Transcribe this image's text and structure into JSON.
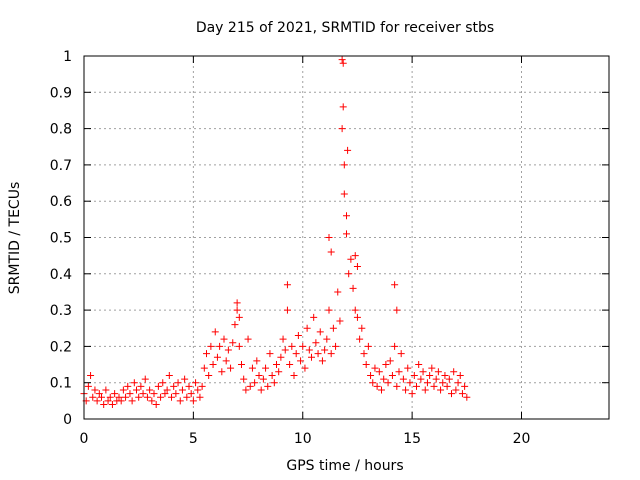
{
  "chart_data": {
    "type": "scatter",
    "title": "Day 215 of 2021, SRMTID for receiver stbs",
    "xlabel": "GPS time / hours",
    "ylabel": "SRMTID / TECUs",
    "xlim": [
      0,
      24
    ],
    "ylim": [
      0,
      1
    ],
    "xticks": [
      0,
      5,
      10,
      15,
      20
    ],
    "xtick_labels": [
      "0",
      "5",
      "10",
      "15",
      "20"
    ],
    "yticks": [
      0,
      0.1,
      0.2,
      0.3,
      0.4,
      0.5,
      0.6,
      0.7,
      0.8,
      0.9,
      1
    ],
    "ytick_labels": [
      "0",
      "0.1",
      "0.2",
      "0.3",
      "0.4",
      "0.5",
      "0.6",
      "0.7",
      "0.8",
      "0.9",
      "1"
    ],
    "grid": true,
    "marker": "+",
    "series": [
      {
        "name": "SRMTID",
        "color": "#ff0000",
        "x": [
          0.0,
          0.1,
          0.2,
          0.3,
          0.4,
          0.5,
          0.6,
          0.7,
          0.8,
          0.9,
          1.0,
          1.1,
          1.2,
          1.3,
          1.4,
          1.5,
          1.6,
          1.7,
          1.8,
          1.9,
          2.0,
          2.1,
          2.2,
          2.3,
          2.4,
          2.5,
          2.6,
          2.7,
          2.8,
          2.9,
          3.0,
          3.1,
          3.2,
          3.3,
          3.4,
          3.5,
          3.6,
          3.7,
          3.8,
          3.9,
          4.0,
          4.1,
          4.2,
          4.3,
          4.4,
          4.5,
          4.6,
          4.7,
          4.8,
          4.9,
          5.0,
          5.1,
          5.2,
          5.3,
          5.4,
          5.5,
          5.6,
          5.7,
          5.8,
          5.9,
          6.0,
          6.1,
          6.2,
          6.3,
          6.4,
          6.5,
          6.6,
          6.7,
          6.8,
          6.9,
          7.0,
          7.1,
          7.2,
          7.3,
          7.4,
          7.5,
          7.6,
          7.7,
          7.8,
          7.9,
          8.0,
          8.1,
          8.2,
          8.3,
          8.4,
          8.5,
          8.6,
          8.7,
          8.8,
          8.9,
          9.0,
          9.1,
          9.2,
          9.3,
          9.4,
          9.5,
          9.6,
          9.7,
          9.8,
          9.9,
          10.0,
          10.1,
          10.2,
          10.3,
          10.4,
          10.5,
          10.6,
          10.7,
          10.8,
          10.9,
          11.0,
          11.1,
          11.2,
          11.3,
          11.4,
          11.5,
          11.6,
          11.7,
          11.8,
          11.85,
          11.9,
          12.0,
          12.05,
          12.1,
          12.2,
          12.3,
          12.4,
          12.5,
          12.6,
          12.7,
          12.8,
          12.9,
          13.0,
          13.1,
          13.2,
          13.3,
          13.4,
          13.5,
          13.6,
          13.7,
          13.8,
          13.9,
          14.0,
          14.1,
          14.2,
          14.3,
          14.4,
          14.5,
          14.6,
          14.7,
          14.8,
          14.9,
          15.0,
          15.1,
          15.2,
          15.3,
          15.4,
          15.5,
          15.6,
          15.7,
          15.8,
          15.9,
          16.0,
          16.1,
          16.2,
          16.3,
          16.4,
          16.5,
          16.6,
          16.7,
          16.8,
          16.9,
          17.0,
          17.1,
          17.2,
          17.3,
          17.4,
          17.5,
          11.8,
          11.85,
          11.9,
          12.0,
          11.2,
          11.3,
          12.4,
          12.5,
          7.0,
          7.1,
          9.3,
          14.2,
          14.3
        ],
        "y": [
          0.07,
          0.05,
          0.09,
          0.12,
          0.06,
          0.08,
          0.05,
          0.07,
          0.06,
          0.04,
          0.08,
          0.05,
          0.06,
          0.04,
          0.07,
          0.05,
          0.06,
          0.05,
          0.08,
          0.06,
          0.09,
          0.07,
          0.05,
          0.1,
          0.08,
          0.06,
          0.09,
          0.07,
          0.11,
          0.06,
          0.08,
          0.05,
          0.07,
          0.04,
          0.09,
          0.06,
          0.1,
          0.07,
          0.08,
          0.12,
          0.06,
          0.09,
          0.07,
          0.1,
          0.05,
          0.08,
          0.11,
          0.06,
          0.09,
          0.07,
          0.05,
          0.1,
          0.08,
          0.06,
          0.09,
          0.14,
          0.18,
          0.12,
          0.2,
          0.15,
          0.24,
          0.17,
          0.2,
          0.13,
          0.22,
          0.16,
          0.19,
          0.14,
          0.21,
          0.26,
          0.3,
          0.2,
          0.15,
          0.11,
          0.08,
          0.22,
          0.09,
          0.14,
          0.1,
          0.16,
          0.12,
          0.08,
          0.11,
          0.14,
          0.09,
          0.18,
          0.12,
          0.1,
          0.15,
          0.13,
          0.17,
          0.22,
          0.19,
          0.3,
          0.15,
          0.2,
          0.12,
          0.18,
          0.23,
          0.16,
          0.2,
          0.14,
          0.25,
          0.19,
          0.17,
          0.28,
          0.21,
          0.18,
          0.24,
          0.16,
          0.19,
          0.22,
          0.3,
          0.18,
          0.25,
          0.2,
          0.35,
          0.27,
          0.8,
          0.98,
          0.62,
          0.56,
          0.74,
          0.4,
          0.44,
          0.36,
          0.3,
          0.28,
          0.22,
          0.25,
          0.18,
          0.15,
          0.2,
          0.12,
          0.1,
          0.14,
          0.09,
          0.13,
          0.08,
          0.11,
          0.15,
          0.1,
          0.16,
          0.12,
          0.2,
          0.09,
          0.13,
          0.18,
          0.11,
          0.08,
          0.14,
          0.1,
          0.07,
          0.12,
          0.09,
          0.15,
          0.11,
          0.13,
          0.08,
          0.1,
          0.12,
          0.14,
          0.09,
          0.11,
          0.13,
          0.08,
          0.1,
          0.12,
          0.09,
          0.11,
          0.07,
          0.13,
          0.08,
          0.1,
          0.12,
          0.07,
          0.09,
          0.06,
          0.99,
          0.86,
          0.7,
          0.51,
          0.5,
          0.46,
          0.45,
          0.42,
          0.32,
          0.28,
          0.37,
          0.37,
          0.3
        ]
      }
    ]
  }
}
